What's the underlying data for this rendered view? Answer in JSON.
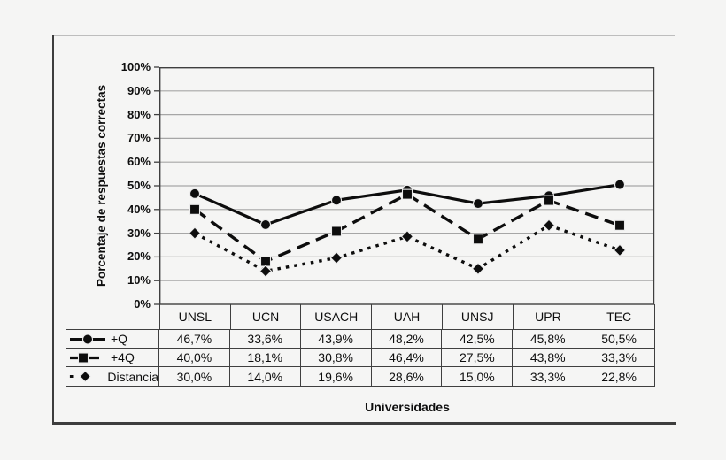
{
  "chart_data": {
    "type": "line",
    "categories": [
      "UNSL",
      "UCN",
      "USACH",
      "UAH",
      "UNSJ",
      "UPR",
      "TEC"
    ],
    "series": [
      {
        "name": "+Q",
        "line_style": "solid",
        "marker": "circle",
        "values": [
          46.7,
          33.6,
          43.9,
          48.2,
          42.5,
          45.8,
          50.5
        ]
      },
      {
        "name": "+4Q",
        "line_style": "dashed",
        "marker": "square",
        "values": [
          40.0,
          18.1,
          30.8,
          46.4,
          27.5,
          43.8,
          33.3
        ]
      },
      {
        "name": "Distancia",
        "line_style": "dotted",
        "marker": "diamond",
        "values": [
          30.0,
          14.0,
          19.6,
          28.6,
          15.0,
          33.3,
          22.8
        ]
      }
    ],
    "title": "",
    "xlabel": "Universidades",
    "ylabel": "Porcentaje de respuestas correctas",
    "ylim": [
      0,
      100
    ],
    "ytick_step": 10,
    "ytick_labels": [
      "100%",
      "90%",
      "80%",
      "70%",
      "60%",
      "50%",
      "40%",
      "30%",
      "20%",
      "10%",
      "0%"
    ],
    "grid": true,
    "legend_position": "table-left",
    "series_color": "#0d0d0d",
    "grid_color": "#a6a6a6",
    "axis_color": "#3f3f3f"
  },
  "table": {
    "column_headers": [
      "UNSL",
      "UCN",
      "USACH",
      "UAH",
      "UNSJ",
      "UPR",
      "TEC"
    ],
    "rows": [
      {
        "label": "+Q",
        "marker": "circle",
        "line_style": "solid",
        "cells": [
          "46,7%",
          "33,6%",
          "43,9%",
          "48,2%",
          "42,5%",
          "45,8%",
          "50,5%"
        ]
      },
      {
        "label": "+4Q",
        "marker": "square",
        "line_style": "dashed",
        "cells": [
          "40,0%",
          "18,1%",
          "30,8%",
          "46,4%",
          "27,5%",
          "43,8%",
          "33,3%"
        ]
      },
      {
        "label": "Distancia",
        "marker": "diamond",
        "line_style": "dotted",
        "cells": [
          "30,0%",
          "14,0%",
          "19,6%",
          "28,6%",
          "15,0%",
          "33,3%",
          "22,8%"
        ]
      }
    ]
  }
}
